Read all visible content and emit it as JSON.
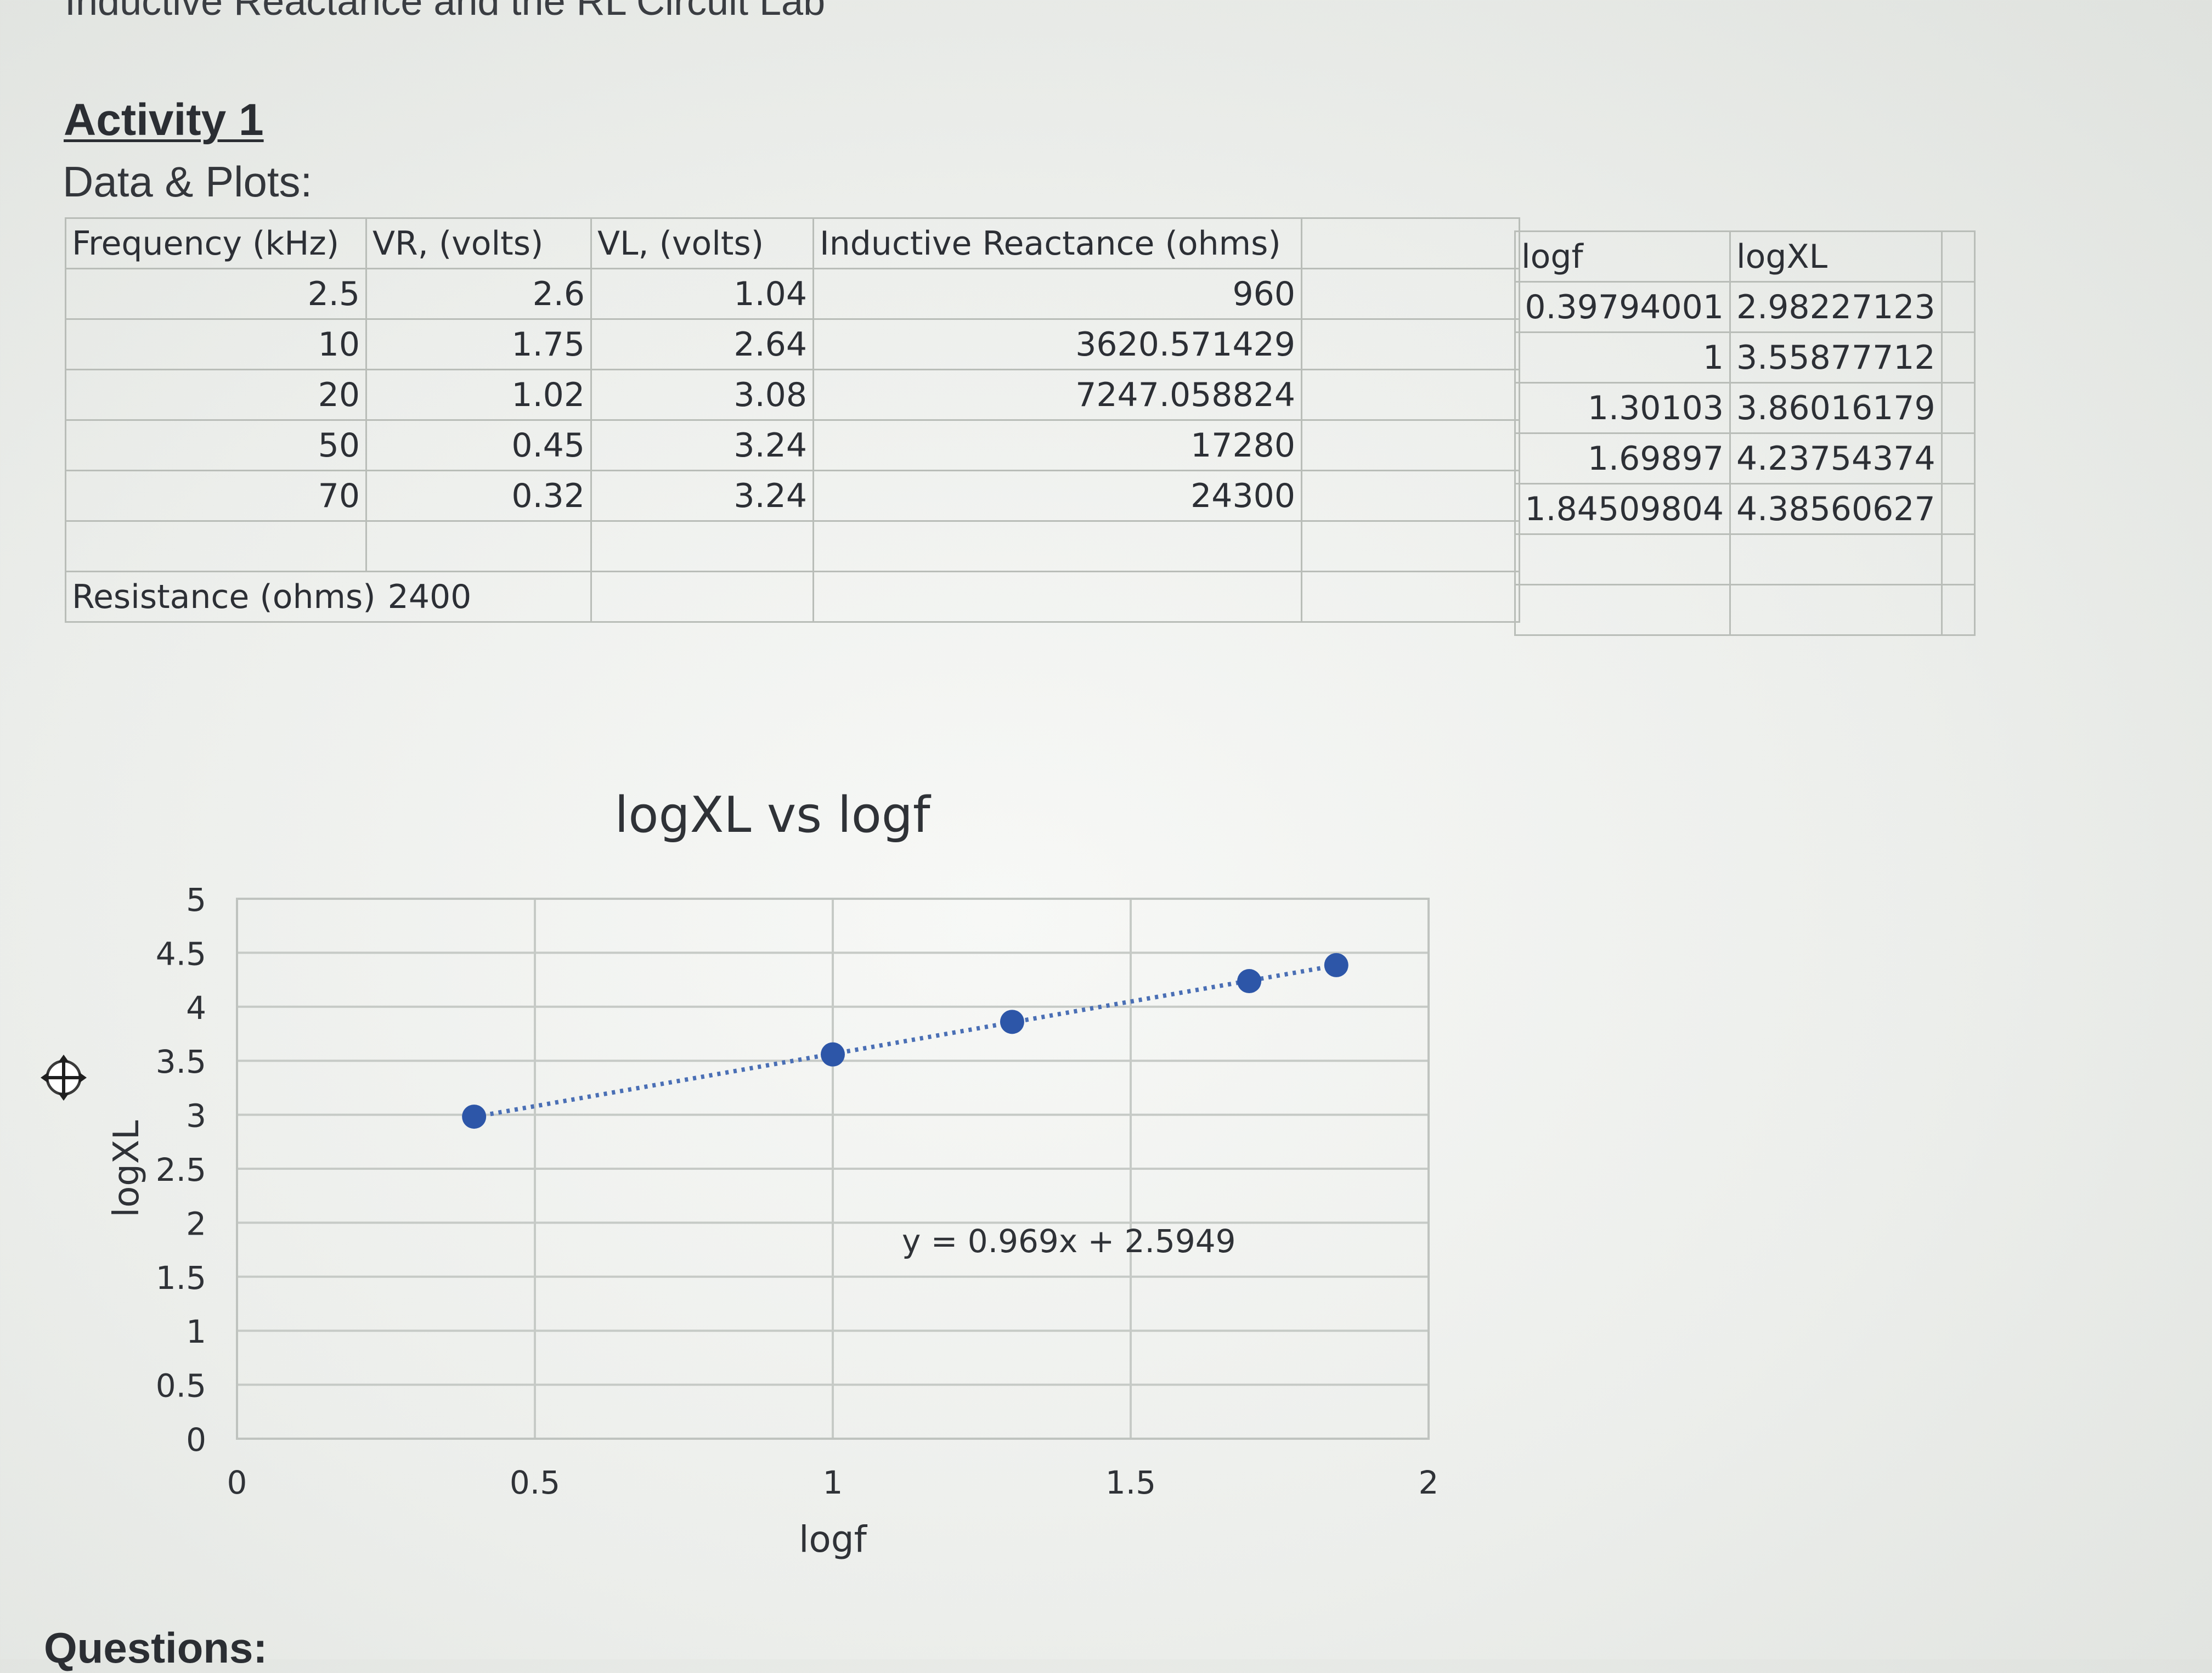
{
  "document": {
    "title": "Inductive Reactance and the RL Circuit Lab",
    "activity_heading": "Activity 1",
    "section_label": "Data & Plots:",
    "questions_heading": "Questions:"
  },
  "main_table": {
    "headers": [
      "Frequency (kHz)",
      "VR, (volts)",
      "VL, (volts)",
      "Inductive Reactance (ohms)"
    ],
    "rows": [
      [
        "2.5",
        "2.6",
        "1.04",
        "960"
      ],
      [
        "10",
        "1.75",
        "2.64",
        "3620.571429"
      ],
      [
        "20",
        "1.02",
        "3.08",
        "7247.058824"
      ],
      [
        "50",
        "0.45",
        "3.24",
        "17280"
      ],
      [
        "70",
        "0.32",
        "3.24",
        "24300"
      ]
    ],
    "resistance_label": "Resistance (ohms)",
    "resistance_value": "2400"
  },
  "log_table": {
    "headers": [
      "logf",
      "logXL"
    ],
    "rows": [
      [
        "0.39794001",
        "2.98227123"
      ],
      [
        "1",
        "3.55877712"
      ],
      [
        "1.30103",
        "3.86016179"
      ],
      [
        "1.69897",
        "4.23754374"
      ],
      [
        "1.84509804",
        "4.38560627"
      ]
    ]
  },
  "chart_data": {
    "type": "scatter",
    "title": "logXL vs logf",
    "xlabel": "logf",
    "ylabel": "logXL",
    "xlim": [
      0,
      2
    ],
    "ylim": [
      0,
      5
    ],
    "x_ticks": [
      "0",
      "0.5",
      "1",
      "1.5",
      "2"
    ],
    "y_ticks": [
      "0",
      "0.5",
      "1",
      "1.5",
      "2",
      "2.5",
      "3",
      "3.5",
      "4",
      "4.5",
      "5"
    ],
    "grid": true,
    "marker_color": "#2d56a8",
    "trendline": {
      "style": "dotted linear",
      "slope": 0.969,
      "intercept": 2.5949,
      "equation": "y = 0.969x + 2.5949"
    },
    "series": [
      {
        "x": [
          0.39794001,
          1,
          1.30103,
          1.69897,
          1.84509804
        ],
        "y": [
          2.98227123,
          3.55877712,
          3.86016179,
          4.23754374,
          4.38560627
        ]
      }
    ]
  }
}
